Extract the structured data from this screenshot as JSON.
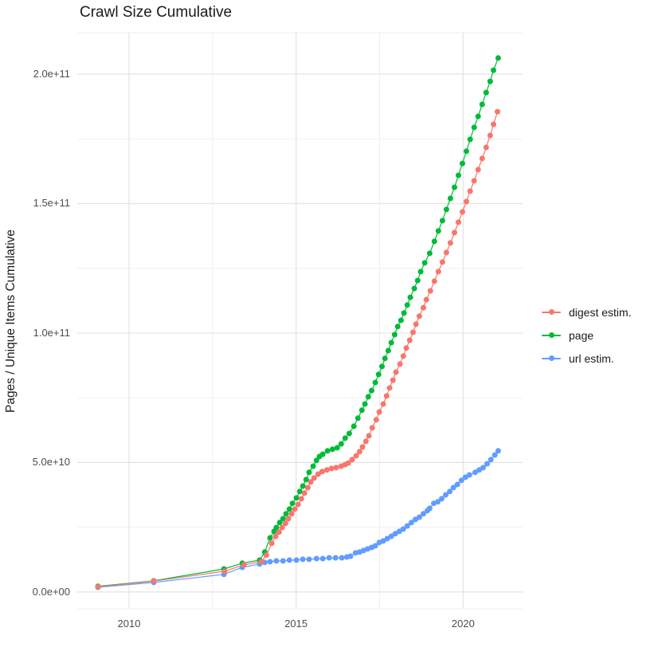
{
  "title": "Crawl Size Cumulative",
  "y_axis_title": "Pages / Unique Items Cumulative",
  "legend": {
    "items": [
      {
        "label": "digest estim.",
        "color": "#F8766D"
      },
      {
        "label": "page",
        "color": "#00BA38"
      },
      {
        "label": "url estim.",
        "color": "#619CFF"
      }
    ]
  },
  "axes": {
    "x": {
      "range": [
        2008.45,
        2021.78
      ],
      "ticks": [
        {
          "label": "2010",
          "value": 2010
        },
        {
          "label": "2015",
          "value": 2015
        },
        {
          "label": "2020",
          "value": 2020
        }
      ],
      "minor": [
        2012.5,
        2017.5
      ]
    },
    "y": {
      "range": [
        -6500000000.0,
        216000000000.0
      ],
      "ticks": [
        {
          "label": "0.0e+00",
          "value": 0
        },
        {
          "label": "5.0e+10",
          "value": 50000000000.0
        },
        {
          "label": "1.0e+11",
          "value": 100000000000.0
        },
        {
          "label": "1.5e+11",
          "value": 150000000000.0
        },
        {
          "label": "2.0e+11",
          "value": 200000000000.0
        }
      ],
      "minor": [
        25000000000.0,
        75000000000.0,
        125000000000.0,
        175000000000.0
      ]
    }
  },
  "chart_data": {
    "type": "line",
    "title": "Crawl Size Cumulative",
    "xlabel": "",
    "ylabel": "Pages / Unique Items Cumulative",
    "x_unit": "year",
    "grid": true,
    "legend_position": "right",
    "point_radius": 3.5,
    "series": [
      {
        "name": "digest estim.",
        "color": "#F8766D",
        "points": [
          [
            2009.07,
            2000000000.0
          ],
          [
            2010.74,
            4200000000.0
          ],
          [
            2012.86,
            8000000000.0
          ],
          [
            2013.44,
            10500000000.0
          ],
          [
            2013.96,
            11700000000.0
          ],
          [
            2014.11,
            14200000000.0
          ],
          [
            2014.27,
            18800000000.0
          ],
          [
            2014.39,
            21500000000.0
          ],
          [
            2014.49,
            23100000000.0
          ],
          [
            2014.58,
            24900000000.0
          ],
          [
            2014.68,
            26500000000.0
          ],
          [
            2014.77,
            28300000000.0
          ],
          [
            2014.87,
            30200000000.0
          ],
          [
            2014.96,
            32000000000.0
          ],
          [
            2015.06,
            33800000000.0
          ],
          [
            2015.16,
            36000000000.0
          ],
          [
            2015.25,
            38200000000.0
          ],
          [
            2015.35,
            40300000000.0
          ],
          [
            2015.44,
            42500000000.0
          ],
          [
            2015.54,
            44000000000.0
          ],
          [
            2015.66,
            45500000000.0
          ],
          [
            2015.78,
            46500000000.0
          ],
          [
            2015.92,
            47100000000.0
          ],
          [
            2016.06,
            47700000000.0
          ],
          [
            2016.2,
            48000000000.0
          ],
          [
            2016.35,
            48600000000.0
          ],
          [
            2016.47,
            49200000000.0
          ],
          [
            2016.56,
            49800000000.0
          ],
          [
            2016.68,
            51100000000.0
          ],
          [
            2016.8,
            52600000000.0
          ],
          [
            2016.9,
            54200000000.0
          ],
          [
            2016.99,
            56000000000.0
          ],
          [
            2017.09,
            58200000000.0
          ],
          [
            2017.18,
            60300000000.0
          ],
          [
            2017.28,
            63400000000.0
          ],
          [
            2017.4,
            66500000000.0
          ],
          [
            2017.49,
            69500000000.0
          ],
          [
            2017.61,
            72600000000.0
          ],
          [
            2017.71,
            75700000000.0
          ],
          [
            2017.8,
            78800000000.0
          ],
          [
            2017.9,
            81800000000.0
          ],
          [
            2017.99,
            84900000000.0
          ],
          [
            2018.11,
            88000000000.0
          ],
          [
            2018.21,
            91100000000.0
          ],
          [
            2018.3,
            94200000000.0
          ],
          [
            2018.4,
            97200000000.0
          ],
          [
            2018.5,
            100300000000.0
          ],
          [
            2018.59,
            103400000000.0
          ],
          [
            2018.69,
            106500000000.0
          ],
          [
            2018.81,
            109800000000.0
          ],
          [
            2018.9,
            112900000000.0
          ],
          [
            2019.02,
            116300000000.0
          ],
          [
            2019.14,
            120000000000.0
          ],
          [
            2019.26,
            123700000000.0
          ],
          [
            2019.38,
            127400000000.0
          ],
          [
            2019.5,
            131100000000.0
          ],
          [
            2019.62,
            134800000000.0
          ],
          [
            2019.74,
            138800000000.0
          ],
          [
            2019.86,
            142800000000.0
          ],
          [
            2019.98,
            146800000000.0
          ],
          [
            2020.1,
            150800000000.0
          ],
          [
            2020.21,
            154800000000.0
          ],
          [
            2020.33,
            158800000000.0
          ],
          [
            2020.45,
            163100000000.0
          ],
          [
            2020.57,
            167400000000.0
          ],
          [
            2020.69,
            171700000000.0
          ],
          [
            2020.81,
            176300000000.0
          ],
          [
            2020.91,
            180600000000.0
          ],
          [
            2021.03,
            185500000000.0
          ]
        ]
      },
      {
        "name": "page",
        "color": "#00BA38",
        "points": [
          [
            2009.07,
            2200000000.0
          ],
          [
            2010.74,
            4300000000.0
          ],
          [
            2012.84,
            8900000000.0
          ],
          [
            2013.39,
            11100000000.0
          ],
          [
            2013.91,
            12300000000.0
          ],
          [
            2014.06,
            15400000000.0
          ],
          [
            2014.22,
            20900000000.0
          ],
          [
            2014.34,
            23400000000.0
          ],
          [
            2014.41,
            24900000000.0
          ],
          [
            2014.51,
            26800000000.0
          ],
          [
            2014.61,
            28300000000.0
          ],
          [
            2014.7,
            30200000000.0
          ],
          [
            2014.8,
            32000000000.0
          ],
          [
            2014.89,
            34200000000.0
          ],
          [
            2015.01,
            36300000000.0
          ],
          [
            2015.11,
            38800000000.0
          ],
          [
            2015.2,
            40900000000.0
          ],
          [
            2015.3,
            43400000000.0
          ],
          [
            2015.39,
            46200000000.0
          ],
          [
            2015.51,
            48600000000.0
          ],
          [
            2015.61,
            50800000000.0
          ],
          [
            2015.7,
            52300000000.0
          ],
          [
            2015.8,
            53200000000.0
          ],
          [
            2015.94,
            54500000000.0
          ],
          [
            2016.09,
            55100000000.0
          ],
          [
            2016.23,
            55700000000.0
          ],
          [
            2016.35,
            57200000000.0
          ],
          [
            2016.47,
            59400000000.0
          ],
          [
            2016.59,
            61200000000.0
          ],
          [
            2016.73,
            64000000000.0
          ],
          [
            2016.85,
            67100000000.0
          ],
          [
            2016.97,
            70200000000.0
          ],
          [
            2017.06,
            72600000000.0
          ],
          [
            2017.16,
            75400000000.0
          ],
          [
            2017.26,
            77800000000.0
          ],
          [
            2017.37,
            80900000000.0
          ],
          [
            2017.47,
            84000000000.0
          ],
          [
            2017.57,
            87100000000.0
          ],
          [
            2017.66,
            90200000000.0
          ],
          [
            2017.76,
            93200000000.0
          ],
          [
            2017.85,
            96300000000.0
          ],
          [
            2017.95,
            99400000000.0
          ],
          [
            2018.04,
            102500000000.0
          ],
          [
            2018.14,
            104900000000.0
          ],
          [
            2018.23,
            107700000000.0
          ],
          [
            2018.33,
            110800000000.0
          ],
          [
            2018.42,
            113800000000.0
          ],
          [
            2018.54,
            117200000000.0
          ],
          [
            2018.64,
            120300000000.0
          ],
          [
            2018.73,
            123700000000.0
          ],
          [
            2018.85,
            127100000000.0
          ],
          [
            2019.0,
            130800000000.0
          ],
          [
            2019.14,
            135400000000.0
          ],
          [
            2019.26,
            139400000000.0
          ],
          [
            2019.38,
            143400000000.0
          ],
          [
            2019.5,
            147700000000.0
          ],
          [
            2019.62,
            152000000000.0
          ],
          [
            2019.74,
            156300000000.0
          ],
          [
            2019.86,
            160900000000.0
          ],
          [
            2019.98,
            165500000000.0
          ],
          [
            2020.1,
            170200000000.0
          ],
          [
            2020.21,
            174800000000.0
          ],
          [
            2020.33,
            179400000000.0
          ],
          [
            2020.45,
            183700000000.0
          ],
          [
            2020.57,
            188300000000.0
          ],
          [
            2020.69,
            192900000000.0
          ],
          [
            2020.81,
            197200000000.0
          ],
          [
            2020.91,
            201500000000.0
          ],
          [
            2021.05,
            206200000000.0
          ]
        ]
      },
      {
        "name": "url estim.",
        "color": "#619CFF",
        "points": [
          [
            2009.07,
            1800000000.0
          ],
          [
            2010.74,
            3700000000.0
          ],
          [
            2012.84,
            6800000000.0
          ],
          [
            2013.39,
            9500000000.0
          ],
          [
            2013.91,
            10800000000.0
          ],
          [
            2014.06,
            11400000000.0
          ],
          [
            2014.22,
            11700000000.0
          ],
          [
            2014.41,
            12000000000.0
          ],
          [
            2014.61,
            12000000000.0
          ],
          [
            2014.8,
            12300000000.0
          ],
          [
            2015.01,
            12300000000.0
          ],
          [
            2015.2,
            12600000000.0
          ],
          [
            2015.39,
            12600000000.0
          ],
          [
            2015.61,
            12900000000.0
          ],
          [
            2015.8,
            12900000000.0
          ],
          [
            2015.99,
            13200000000.0
          ],
          [
            2016.18,
            13200000000.0
          ],
          [
            2016.37,
            13200000000.0
          ],
          [
            2016.52,
            13500000000.0
          ],
          [
            2016.63,
            13800000000.0
          ],
          [
            2016.78,
            15100000000.0
          ],
          [
            2016.9,
            15400000000.0
          ],
          [
            2017.02,
            16000000000.0
          ],
          [
            2017.14,
            16600000000.0
          ],
          [
            2017.26,
            17200000000.0
          ],
          [
            2017.37,
            17800000000.0
          ],
          [
            2017.49,
            19100000000.0
          ],
          [
            2017.61,
            19700000000.0
          ],
          [
            2017.73,
            20600000000.0
          ],
          [
            2017.85,
            21500000000.0
          ],
          [
            2017.97,
            22500000000.0
          ],
          [
            2018.09,
            23400000000.0
          ],
          [
            2018.21,
            24300000000.0
          ],
          [
            2018.33,
            25500000000.0
          ],
          [
            2018.45,
            26800000000.0
          ],
          [
            2018.57,
            28000000000.0
          ],
          [
            2018.69,
            28900000000.0
          ],
          [
            2018.81,
            30200000000.0
          ],
          [
            2018.93,
            31400000000.0
          ],
          [
            2019.0,
            32300000000.0
          ],
          [
            2019.12,
            34200000000.0
          ],
          [
            2019.24,
            34800000000.0
          ],
          [
            2019.36,
            36000000000.0
          ],
          [
            2019.48,
            37500000000.0
          ],
          [
            2019.6,
            38800000000.0
          ],
          [
            2019.71,
            40300000000.0
          ],
          [
            2019.83,
            41500000000.0
          ],
          [
            2019.95,
            43100000000.0
          ],
          [
            2020.07,
            44300000000.0
          ],
          [
            2020.19,
            45200000000.0
          ],
          [
            2020.36,
            46200000000.0
          ],
          [
            2020.48,
            47100000000.0
          ],
          [
            2020.6,
            48000000000.0
          ],
          [
            2020.72,
            49500000000.0
          ],
          [
            2020.83,
            51100000000.0
          ],
          [
            2020.95,
            52900000000.0
          ],
          [
            2021.05,
            54500000000.0
          ]
        ]
      }
    ]
  },
  "style": {
    "grid_major_color": "#e3e3e3",
    "grid_minor_color": "#efefef",
    "background": "#ffffff"
  }
}
